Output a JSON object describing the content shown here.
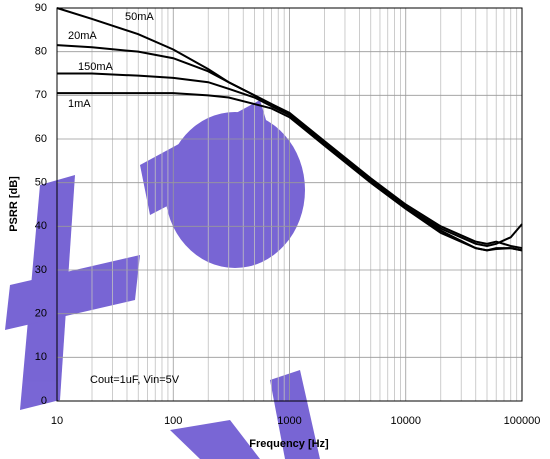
{
  "chart_data": {
    "type": "line",
    "x_label": "Frequency [Hz]",
    "y_label": "PSRR [dB]",
    "annotation": "Cout=1uF, Vin=5V",
    "x_log": true,
    "grid": true,
    "x_minor_grid": true,
    "x": [
      10,
      20,
      50,
      100,
      200,
      300,
      500,
      700,
      1000,
      2000,
      5000,
      10000,
      20000,
      40000,
      50000,
      60000,
      80000,
      100000
    ],
    "series": [
      {
        "name": "50mA",
        "color": "#000000",
        "values": [
          90,
          87.5,
          84,
          80.5,
          76,
          73,
          70,
          68,
          65.5,
          59,
          50.5,
          44.5,
          39.5,
          36,
          35.5,
          36,
          37.5,
          40.5
        ]
      },
      {
        "name": "20mA",
        "color": "#000000",
        "values": [
          81.5,
          81,
          80,
          78.5,
          75.5,
          73,
          70,
          68,
          66,
          59.5,
          51,
          45,
          40,
          36.5,
          36,
          36.5,
          35.5,
          35
        ]
      },
      {
        "name": "150mA",
        "color": "#000000",
        "values": [
          75,
          75,
          74.5,
          74,
          73,
          71.5,
          69.5,
          67.5,
          65.5,
          59,
          50.5,
          44.5,
          39,
          35,
          34.5,
          35,
          35,
          34.5
        ]
      },
      {
        "name": "1mA",
        "color": "#000000",
        "values": [
          70.5,
          70.5,
          70.5,
          70.5,
          70,
          69.5,
          68,
          67,
          65,
          58.5,
          50,
          44,
          38.5,
          35,
          34.5,
          34.8,
          35,
          34.5
        ]
      }
    ],
    "xlim": [
      10,
      100000
    ],
    "xticks": [
      10,
      100,
      1000,
      10000,
      100000
    ],
    "ylim": [
      0,
      90
    ],
    "yticks": [
      0,
      10,
      20,
      30,
      40,
      50,
      60,
      70,
      80,
      90
    ]
  }
}
